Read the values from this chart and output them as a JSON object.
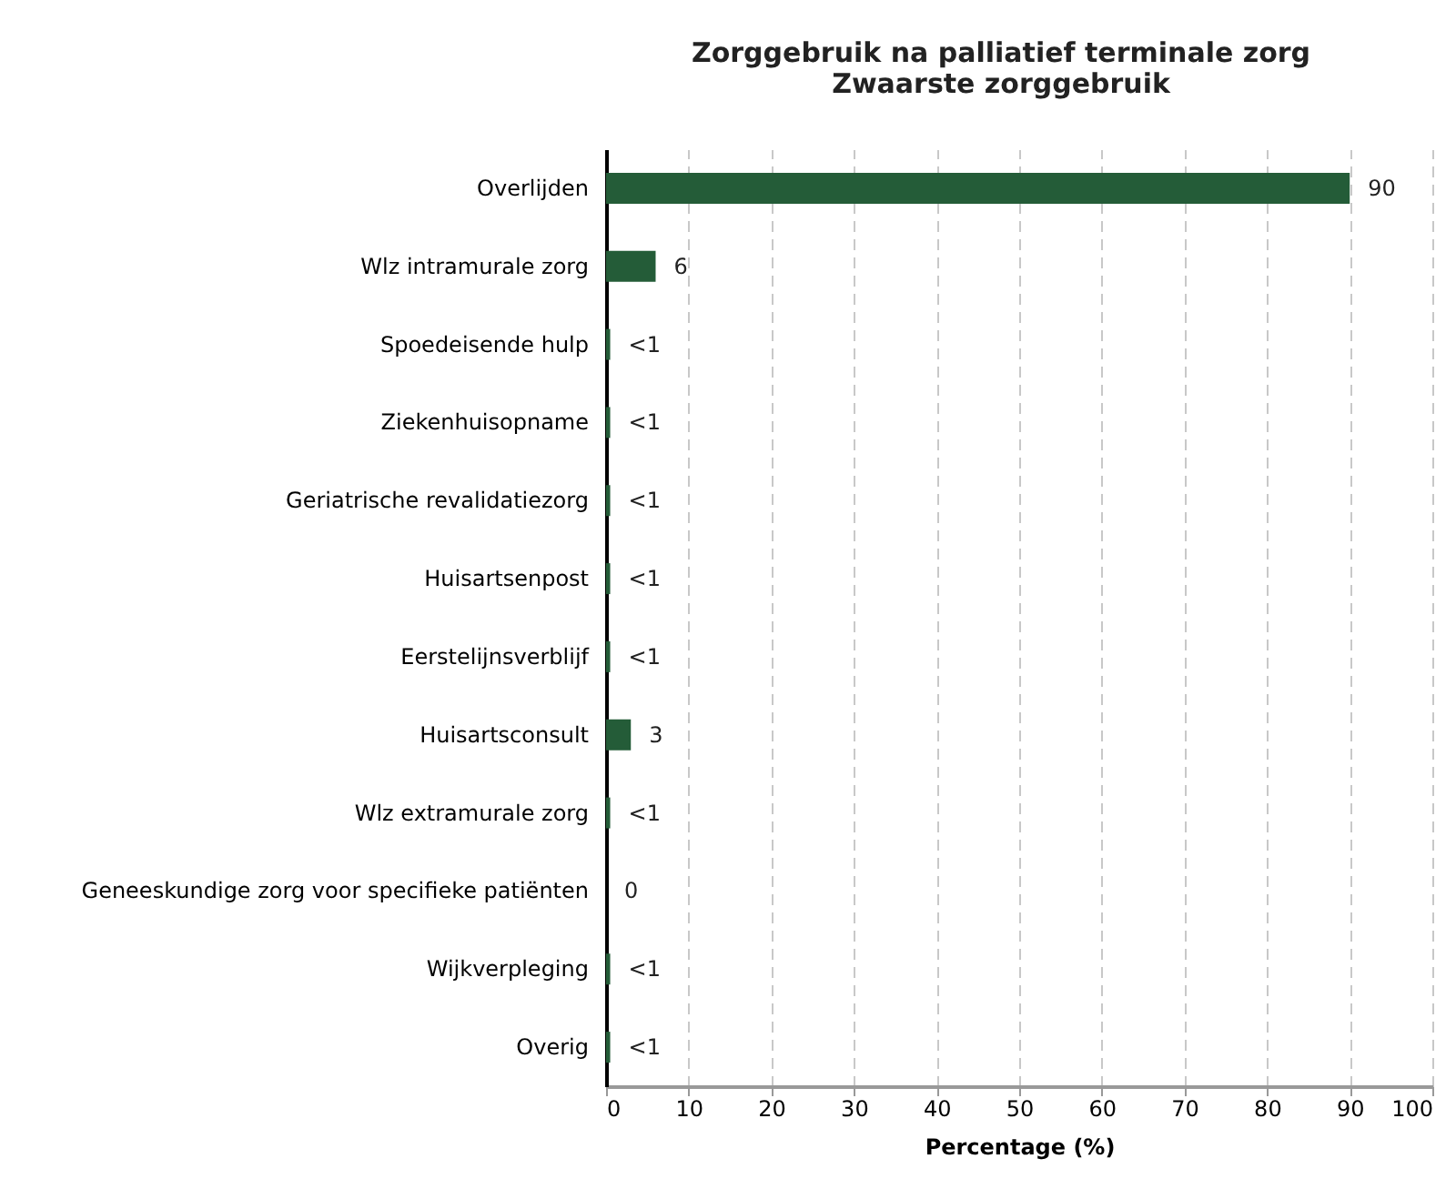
{
  "chart_data": {
    "type": "bar",
    "orientation": "horizontal",
    "title": [
      "Zorggebruik na palliatief terminale zorg",
      "Zwaarste zorggebruik"
    ],
    "xlabel": "Percentage (%)",
    "categories": [
      "Overlijden",
      "Wlz intramurale zorg",
      "Spoedeisende hulp",
      "Ziekenhuisopname",
      "Geriatrische revalidatiezorg",
      "Huisartsenpost",
      "Eerstelijnsverblijf",
      "Huisartsconsult",
      "Wlz extramurale zorg",
      "Geneeskundige zorg voor specifieke patiënten",
      "Wijkverpleging",
      "Overig"
    ],
    "values": [
      90,
      6,
      0.5,
      0.5,
      0.5,
      0.5,
      0.5,
      3,
      0.5,
      0,
      0.5,
      0.5
    ],
    "value_labels": [
      "90",
      "6",
      "<1",
      "<1",
      "<1",
      "<1",
      "<1",
      "3",
      "<1",
      "0",
      "<1",
      "<1"
    ],
    "color": "#245c38",
    "xlim": [
      0,
      100
    ],
    "xticks": [
      0,
      10,
      20,
      30,
      40,
      50,
      60,
      70,
      80,
      90,
      100
    ],
    "grid": "x"
  }
}
